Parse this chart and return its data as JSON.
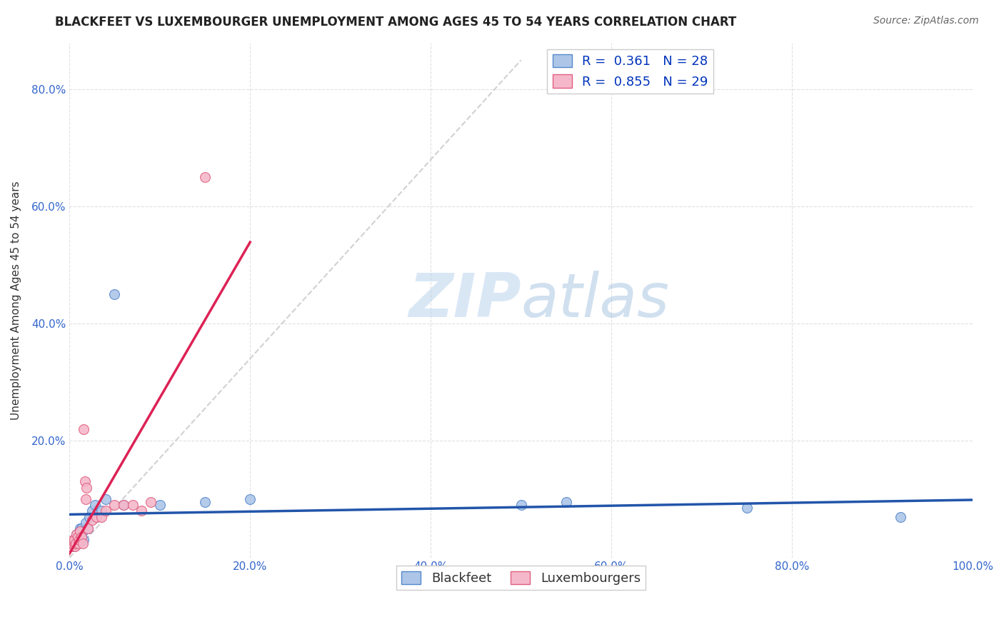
{
  "title": "BLACKFEET VS LUXEMBOURGER UNEMPLOYMENT AMONG AGES 45 TO 54 YEARS CORRELATION CHART",
  "source": "Source: ZipAtlas.com",
  "ylabel": "Unemployment Among Ages 45 to 54 years",
  "xlim": [
    0.0,
    1.0
  ],
  "ylim": [
    0.0,
    0.88
  ],
  "xticks": [
    0.0,
    0.2,
    0.4,
    0.6,
    0.8,
    1.0
  ],
  "yticks": [
    0.0,
    0.2,
    0.4,
    0.6,
    0.8
  ],
  "xtick_labels": [
    "0.0%",
    "20.0%",
    "40.0%",
    "60.0%",
    "80.0%",
    "100.0%"
  ],
  "ytick_labels": [
    "",
    "20.0%",
    "40.0%",
    "60.0%",
    "80.0%"
  ],
  "blackfeet_x": [
    0.005,
    0.006,
    0.007,
    0.008,
    0.009,
    0.01,
    0.011,
    0.012,
    0.013,
    0.015,
    0.016,
    0.018,
    0.02,
    0.022,
    0.025,
    0.028,
    0.03,
    0.035,
    0.04,
    0.05,
    0.06,
    0.1,
    0.15,
    0.2,
    0.5,
    0.55,
    0.75,
    0.92
  ],
  "blackfeet_y": [
    0.02,
    0.025,
    0.03,
    0.04,
    0.03,
    0.035,
    0.04,
    0.05,
    0.05,
    0.045,
    0.03,
    0.06,
    0.05,
    0.07,
    0.08,
    0.09,
    0.07,
    0.08,
    0.1,
    0.45,
    0.09,
    0.09,
    0.095,
    0.1,
    0.09,
    0.095,
    0.085,
    0.07
  ],
  "luxembourger_x": [
    0.002,
    0.003,
    0.004,
    0.005,
    0.005,
    0.006,
    0.007,
    0.008,
    0.009,
    0.01,
    0.011,
    0.012,
    0.013,
    0.015,
    0.016,
    0.017,
    0.018,
    0.019,
    0.02,
    0.025,
    0.03,
    0.035,
    0.04,
    0.05,
    0.06,
    0.07,
    0.08,
    0.09,
    0.15
  ],
  "luxembourger_y": [
    0.02,
    0.025,
    0.03,
    0.025,
    0.03,
    0.02,
    0.025,
    0.04,
    0.035,
    0.025,
    0.03,
    0.045,
    0.035,
    0.025,
    0.22,
    0.13,
    0.1,
    0.12,
    0.05,
    0.065,
    0.07,
    0.07,
    0.08,
    0.09,
    0.09,
    0.09,
    0.08,
    0.095,
    0.65
  ],
  "blackfeet_color": "#adc6e8",
  "luxembourger_color": "#f5b8ca",
  "blackfeet_edge_color": "#5588cc",
  "luxembourger_edge_color": "#e06080",
  "trend_blue_color": "#2255aa",
  "trend_pink_color": "#dd2255",
  "ref_line_color": "#cccccc",
  "grid_color": "#cccccc",
  "r_blackfeet": 0.361,
  "n_blackfeet": 28,
  "r_luxembourger": 0.855,
  "n_luxembourger": 29,
  "watermark_zip": "ZIP",
  "watermark_atlas": "atlas",
  "title_fontsize": 12,
  "axis_label_fontsize": 11,
  "tick_fontsize": 11,
  "legend_fontsize": 13,
  "marker_size": 100
}
